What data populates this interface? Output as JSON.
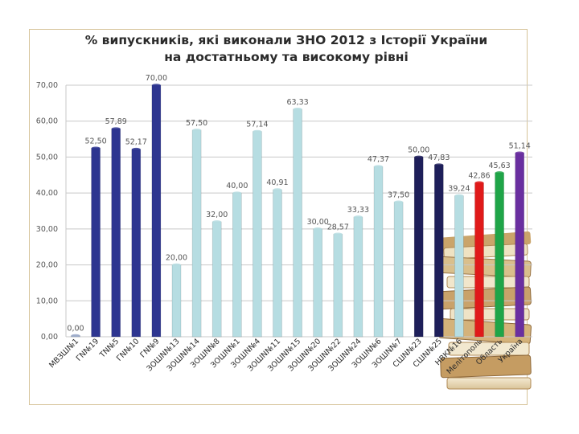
{
  "title_line1": "% випускників, які виконали ЗНО 2012 з Історії України",
  "title_line2": "на достатньому та високому рівні",
  "chart_data": {
    "type": "bar",
    "title": "% випускників, які виконали ЗНО 2012 з Історії України на достатньому та високому рівні",
    "xlabel": "",
    "ylabel": "",
    "ylim": [
      0,
      70
    ],
    "yticks": [
      0,
      10,
      20,
      30,
      40,
      50,
      60,
      70
    ],
    "ytick_labels": [
      "0,00",
      "10,00",
      "20,00",
      "30,00",
      "40,00",
      "50,00",
      "60,00",
      "70,00"
    ],
    "grid": true,
    "legend": "none",
    "categories": [
      "МВЗШ№1",
      "ГN№19",
      "ТN№5",
      "ГN№10",
      "ГN№9",
      "ЗОШN№13",
      "ЗОШN№14",
      "ЗОШN№8",
      "ЗОШN№1",
      "ЗОШN№4",
      "ЗОШN№11",
      "ЗОШN№15",
      "ЗОШN№20",
      "ЗОШN№22",
      "ЗОШN№24",
      "ЗОШN№6",
      "ЗОШN№7",
      "СШN№23",
      "СШN№25",
      "НВК№16",
      "Мелітополь",
      "Область",
      "Україна"
    ],
    "values": [
      0.0,
      52.5,
      57.89,
      52.17,
      70.0,
      20.0,
      57.5,
      32.0,
      40.0,
      57.14,
      40.91,
      63.33,
      30.0,
      28.57,
      33.33,
      47.37,
      37.5,
      50.0,
      47.83,
      39.24,
      42.86,
      45.63,
      51.14
    ],
    "value_labels": [
      "0,00",
      "52,50",
      "57,89",
      "52,17",
      "70,00",
      "20,00",
      "57,50",
      "32,00",
      "40,00",
      "57,14",
      "40,91",
      "63,33",
      "30,00",
      "28,57",
      "33,33",
      "47,37",
      "37,50",
      "50,00",
      "47,83",
      "39,24",
      "42,86",
      "45,63",
      "51,14"
    ],
    "colors": [
      "#9aa9ca",
      "#2d3590",
      "#2d3590",
      "#2d3590",
      "#2d3590",
      "#b6dde2",
      "#b6dde2",
      "#b6dde2",
      "#b6dde2",
      "#b6dde2",
      "#b6dde2",
      "#b6dde2",
      "#b6dde2",
      "#b6dde2",
      "#b6dde2",
      "#b6dde2",
      "#b6dde2",
      "#1e1f5a",
      "#1e1f5a",
      "#b6dde2",
      "#e01a1a",
      "#1fa548",
      "#6a2fa0"
    ]
  }
}
